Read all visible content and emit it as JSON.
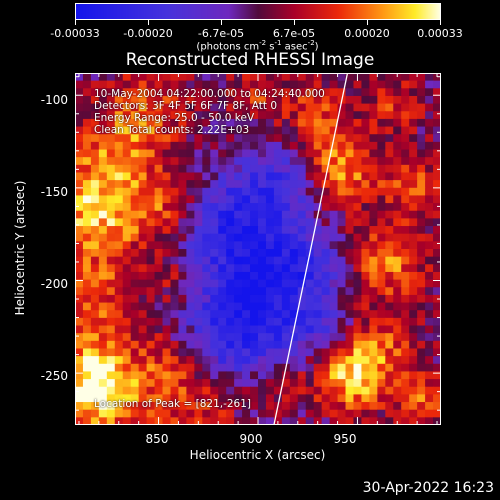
{
  "chart_data": {
    "type": "heatmap",
    "title": "Reconstructed RHESSI Image",
    "xlabel": "Heliocentric X (arcsec)",
    "ylabel": "Heliocentric Y (arcsec)",
    "xlim": [
      808,
      992
    ],
    "ylim": [
      -278,
      -88
    ],
    "xticks": [
      "850",
      "900",
      "950"
    ],
    "xtick_values": [
      850,
      900,
      950
    ],
    "yticks": [
      "-100",
      "-150",
      "-200",
      "-250"
    ],
    "ytick_values": [
      -100,
      -150,
      -200,
      -250
    ],
    "colorbar": {
      "colormap": "Hot-Cold (blue-purple-red-yellow-white)",
      "range": [
        -0.00033,
        0.00033
      ],
      "tick_labels": [
        "-0.00033",
        "-0.00020",
        "-6.7e-05",
        "6.7e-05",
        "0.00020",
        "0.00033"
      ],
      "tick_values": [
        -0.00033,
        -0.0002,
        -6.7e-05,
        6.7e-05,
        0.0002,
        0.00033
      ],
      "units_text": "(photons cm",
      "units_exp1": "-2",
      "units_mid": " s",
      "units_exp2": "-1",
      "units_mid2": " asec",
      "units_exp3": "-2",
      "units_end": ")"
    },
    "annotations": {
      "time_range": "10-May-2004 04:22:00.000 to 04:24:40.000",
      "detectors": "Detectors: 3F 4F 5F 6F 7F 8F, Att 0",
      "energy": "Energy Range: 25.0 - 50.0 keV",
      "clean": "Clean      Total counts: 2.22E+03",
      "peak": "Location of Peak = [821,-261]"
    },
    "peak_location": [
      821,
      -261
    ],
    "limb_line": {
      "x": [
        908,
        945
      ],
      "y": [
        -278,
        -88
      ]
    },
    "image_grid": {
      "nx": 46,
      "ny": 46,
      "description": "reconstructed intensity map: bright yellow/white sources at left (x~810-850) and right-center (x~930-990); blue negative region around x~870-930, y~-130 to -250"
    },
    "grid": false
  },
  "footer": {
    "date": "30-Apr-2022 16:23"
  }
}
